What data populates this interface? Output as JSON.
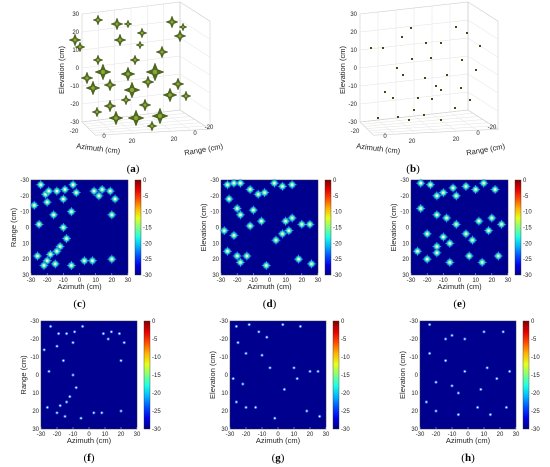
{
  "colors": {
    "background_2d": "#00008f",
    "target_3d": "#4f6b1a",
    "target_3d_sparse": "#4a4418",
    "box_grid": "#d9d9d9"
  },
  "colormap": "jet",
  "chart_data": [
    {
      "id": "a",
      "panel_label": "a",
      "type": "scatter",
      "dimension": "3d",
      "view": "isosurface",
      "xlabel": "Azimuth (cm)",
      "ylabel": "Range (cm)",
      "zlabel": "Elevation (cm)",
      "x_ticks": [
        "-20",
        "0",
        "20"
      ],
      "y_ticks": [
        "20",
        "0",
        "-20"
      ],
      "z_ticks": [
        "30",
        "20",
        "10",
        "0",
        "-10",
        "-20",
        "-30"
      ],
      "xlim": [
        -30,
        30
      ],
      "ylim": [
        -30,
        30
      ],
      "zlim": [
        -30,
        30
      ],
      "grid": true
    },
    {
      "id": "b",
      "panel_label": "b",
      "type": "scatter",
      "dimension": "3d",
      "view": "points",
      "xlabel": "Azimuth (cm)",
      "ylabel": "Range (cm)",
      "zlabel": "Elevation (cm)",
      "x_ticks": [
        "-20",
        "0",
        "20"
      ],
      "y_ticks": [
        "20",
        "0",
        "-20"
      ],
      "z_ticks": [
        "30",
        "20",
        "10",
        "0",
        "-10",
        "-20",
        "-30"
      ],
      "xlim": [
        -30,
        30
      ],
      "ylim": [
        -30,
        30
      ],
      "zlim": [
        -30,
        30
      ],
      "grid": true
    },
    {
      "id": "c",
      "panel_label": "c",
      "type": "heatmap",
      "xlabel": "Azimuth (cm)",
      "ylabel": "Range (cm)",
      "xlim": [
        -30,
        30
      ],
      "ylim": [
        -30,
        30
      ],
      "x_ticks": [
        "-30",
        "-20",
        "-10",
        "0",
        "10",
        "20",
        "30"
      ],
      "y_ticks": [
        "-30",
        "-20",
        "-10",
        "0",
        "10",
        "20",
        "30"
      ],
      "colorbar_ticks": [
        "0",
        "-5",
        "-10",
        "-15",
        "-20",
        "-25",
        "-30"
      ],
      "clim": [
        -30,
        0
      ],
      "style": "wide",
      "points": [
        [
          -24,
          -27
        ],
        [
          -21,
          -21
        ],
        [
          -19,
          -23
        ],
        [
          -14,
          -23
        ],
        [
          -9,
          -24
        ],
        [
          -4,
          -27
        ],
        [
          -2,
          -22
        ],
        [
          9,
          -23
        ],
        [
          14,
          -24
        ],
        [
          19,
          -23
        ],
        [
          -28,
          -14
        ],
        [
          -20,
          -16
        ],
        [
          -10,
          -18
        ],
        [
          12,
          -20
        ],
        [
          22,
          -18
        ],
        [
          -25,
          -2
        ],
        [
          -10,
          0
        ],
        [
          20,
          -8
        ],
        [
          -16,
          -8
        ],
        [
          -8,
          7
        ],
        [
          -12,
          12
        ],
        [
          -14,
          15
        ],
        [
          -18,
          17
        ],
        [
          -26,
          18
        ],
        [
          -20,
          21
        ],
        [
          -22,
          24
        ],
        [
          -15,
          23
        ],
        [
          -5,
          24
        ],
        [
          3,
          21
        ],
        [
          8,
          21
        ],
        [
          20,
          20
        ],
        [
          -5,
          -10
        ]
      ]
    },
    {
      "id": "d",
      "panel_label": "d",
      "type": "heatmap",
      "xlabel": "Azimuth (cm)",
      "ylabel": "Elevation (cm)",
      "xlim": [
        -30,
        30
      ],
      "ylim": [
        -30,
        30
      ],
      "x_ticks": [
        "-30",
        "-20",
        "-10",
        "0",
        "10",
        "20",
        "30"
      ],
      "y_ticks": [
        "-30",
        "-20",
        "-10",
        "0",
        "10",
        "20",
        "30"
      ],
      "colorbar_ticks": [
        "0",
        "-5",
        "-10",
        "-15",
        "-20",
        "-25",
        "-30"
      ],
      "clim": [
        -30,
        0
      ],
      "style": "wide",
      "points": [
        [
          -26,
          -27
        ],
        [
          -22,
          -28
        ],
        [
          -18,
          -28
        ],
        [
          -12,
          -24
        ],
        [
          -7,
          -21
        ],
        [
          -3,
          -22
        ],
        [
          3,
          -28
        ],
        [
          8,
          -26
        ],
        [
          14,
          -27
        ],
        [
          -25,
          -18
        ],
        [
          -20,
          -12
        ],
        [
          -18,
          -8
        ],
        [
          -10,
          -11
        ],
        [
          -5,
          -4
        ],
        [
          10,
          -4
        ],
        [
          14,
          -6
        ],
        [
          20,
          -2
        ],
        [
          -28,
          2
        ],
        [
          -22,
          5
        ],
        [
          -12,
          -1
        ],
        [
          4,
          8
        ],
        [
          8,
          4
        ],
        [
          12,
          2
        ],
        [
          25,
          -2
        ],
        [
          -26,
          15
        ],
        [
          -20,
          18
        ],
        [
          -14,
          18
        ],
        [
          -18,
          22
        ],
        [
          -2,
          24
        ],
        [
          18,
          20
        ],
        [
          26,
          23
        ]
      ]
    },
    {
      "id": "e",
      "panel_label": "e",
      "type": "heatmap",
      "xlabel": "Azimuth (cm)",
      "ylabel": "Elevation (cm)",
      "xlim": [
        -30,
        30
      ],
      "ylim": [
        -30,
        30
      ],
      "x_ticks": [
        "-30",
        "-20",
        "-10",
        "0",
        "10",
        "20",
        "30"
      ],
      "y_ticks": [
        "-30",
        "-20",
        "-10",
        "0",
        "10",
        "20",
        "30"
      ],
      "colorbar_ticks": [
        "0",
        "-5",
        "-10",
        "-15",
        "-20",
        "-25",
        "-30"
      ],
      "clim": [
        -30,
        0
      ],
      "style": "wide",
      "points": [
        [
          -24,
          -28
        ],
        [
          -18,
          -27
        ],
        [
          -14,
          -20
        ],
        [
          -10,
          -22
        ],
        [
          -4,
          -25
        ],
        [
          -2,
          -20
        ],
        [
          4,
          -26
        ],
        [
          10,
          -24
        ],
        [
          15,
          -28
        ],
        [
          22,
          -24
        ],
        [
          -24,
          -12
        ],
        [
          -14,
          -8
        ],
        [
          -8,
          -6
        ],
        [
          -2,
          -2
        ],
        [
          12,
          -4
        ],
        [
          20,
          -6
        ],
        [
          26,
          -2
        ],
        [
          -20,
          4
        ],
        [
          -10,
          6
        ],
        [
          -14,
          12
        ],
        [
          -6,
          10
        ],
        [
          4,
          4
        ],
        [
          8,
          8
        ],
        [
          18,
          2
        ],
        [
          -26,
          15
        ],
        [
          -20,
          20
        ],
        [
          -14,
          16
        ],
        [
          -6,
          22
        ],
        [
          6,
          18
        ],
        [
          14,
          22
        ],
        [
          24,
          18
        ]
      ]
    },
    {
      "id": "f",
      "panel_label": "f",
      "type": "heatmap",
      "xlabel": "Azimuth (cm)",
      "ylabel": "Range (cm)",
      "xlim": [
        -30,
        30
      ],
      "ylim": [
        -30,
        30
      ],
      "x_ticks": [
        "-30",
        "-20",
        "-10",
        "0",
        "10",
        "20",
        "30"
      ],
      "y_ticks": [
        "-30",
        "-20",
        "-10",
        "0",
        "10",
        "20",
        "30"
      ],
      "colorbar_ticks": [
        "0",
        "-5",
        "-10",
        "-15",
        "-20",
        "-25",
        "-30"
      ],
      "clim": [
        -30,
        0
      ],
      "style": "dot",
      "points": [
        [
          -24,
          -27
        ],
        [
          -19,
          -23
        ],
        [
          -14,
          -23
        ],
        [
          -9,
          -24
        ],
        [
          -4,
          -27
        ],
        [
          9,
          -23
        ],
        [
          14,
          -24
        ],
        [
          19,
          -23
        ],
        [
          -28,
          -14
        ],
        [
          -20,
          -16
        ],
        [
          -10,
          -18
        ],
        [
          12,
          -20
        ],
        [
          22,
          -18
        ],
        [
          -25,
          -2
        ],
        [
          -10,
          0
        ],
        [
          20,
          -8
        ],
        [
          -16,
          -8
        ],
        [
          -8,
          7
        ],
        [
          -12,
          12
        ],
        [
          -14,
          15
        ],
        [
          -18,
          17
        ],
        [
          -26,
          18
        ],
        [
          -20,
          21
        ],
        [
          -15,
          23
        ],
        [
          -5,
          24
        ],
        [
          3,
          21
        ],
        [
          8,
          21
        ],
        [
          20,
          20
        ]
      ]
    },
    {
      "id": "g",
      "panel_label": "g",
      "type": "heatmap",
      "xlabel": "Azimuth (cm)",
      "ylabel": "Elevation (cm)",
      "xlim": [
        -30,
        30
      ],
      "ylim": [
        -30,
        30
      ],
      "x_ticks": [
        "-30",
        "-20",
        "-10",
        "0",
        "10",
        "20",
        "30"
      ],
      "y_ticks": [
        "-30",
        "-20",
        "-10",
        "0",
        "10",
        "20",
        "30"
      ],
      "colorbar_ticks": [
        "0",
        "-5",
        "-10",
        "-15",
        "-20",
        "-25",
        "-30"
      ],
      "clim": [
        -30,
        0
      ],
      "style": "dot",
      "points": [
        [
          -26,
          -27
        ],
        [
          -18,
          -28
        ],
        [
          -12,
          -24
        ],
        [
          -7,
          -21
        ],
        [
          3,
          -28
        ],
        [
          14,
          -27
        ],
        [
          -25,
          -18
        ],
        [
          -20,
          -12
        ],
        [
          -10,
          -11
        ],
        [
          -5,
          -4
        ],
        [
          10,
          -4
        ],
        [
          20,
          -2
        ],
        [
          -28,
          2
        ],
        [
          -22,
          5
        ],
        [
          4,
          8
        ],
        [
          12,
          2
        ],
        [
          25,
          -2
        ],
        [
          -26,
          15
        ],
        [
          -20,
          18
        ],
        [
          -14,
          18
        ],
        [
          -2,
          24
        ],
        [
          18,
          20
        ],
        [
          26,
          23
        ]
      ]
    },
    {
      "id": "h",
      "panel_label": "h",
      "type": "heatmap",
      "xlabel": "Azimuth (cm)",
      "ylabel": "Elevation (cm)",
      "xlim": [
        -30,
        30
      ],
      "ylim": [
        -30,
        30
      ],
      "x_ticks": [
        "-30",
        "-20",
        "-10",
        "0",
        "10",
        "20",
        "30"
      ],
      "y_ticks": [
        "-30",
        "-20",
        "-10",
        "0",
        "10",
        "20",
        "30"
      ],
      "colorbar_ticks": [
        "0",
        "-5",
        "-10",
        "-15",
        "-20",
        "-25",
        "-30"
      ],
      "clim": [
        -30,
        0
      ],
      "style": "dot",
      "points": [
        [
          -24,
          -28
        ],
        [
          -14,
          -20
        ],
        [
          -10,
          -22
        ],
        [
          -2,
          -20
        ],
        [
          10,
          -24
        ],
        [
          22,
          -24
        ],
        [
          -24,
          -12
        ],
        [
          -14,
          -8
        ],
        [
          -2,
          -2
        ],
        [
          12,
          -4
        ],
        [
          26,
          -2
        ],
        [
          -20,
          4
        ],
        [
          -10,
          6
        ],
        [
          -6,
          10
        ],
        [
          8,
          8
        ],
        [
          18,
          2
        ],
        [
          -26,
          15
        ],
        [
          -20,
          20
        ],
        [
          -6,
          22
        ],
        [
          6,
          18
        ],
        [
          14,
          22
        ],
        [
          24,
          18
        ]
      ]
    }
  ]
}
